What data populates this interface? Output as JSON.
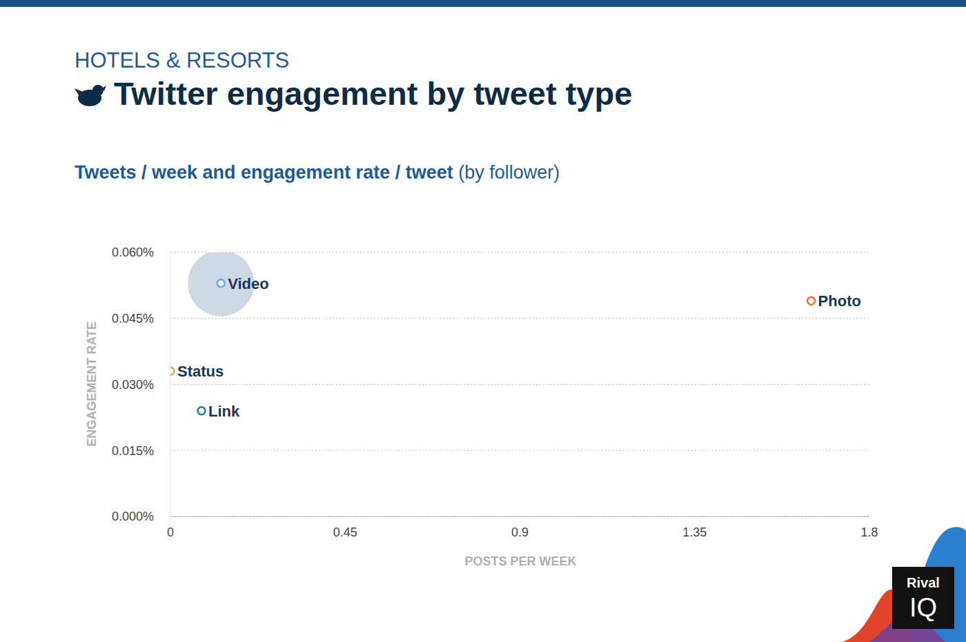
{
  "chart_data": {
    "type": "scatter",
    "supertitle": "HOTELS & RESORTS",
    "title": "Twitter engagement by tweet type",
    "subtitle": "Tweets / week and engagement rate / tweet",
    "subtitle_note": "(by follower)",
    "x_label": "POSTS PER WEEK",
    "y_label": "ENGAGEMENT RATE",
    "xlim": [
      0,
      1.8
    ],
    "xticks": [
      0,
      0.45,
      0.9,
      1.35,
      1.8
    ],
    "ylim": [
      0,
      0.06
    ],
    "yticks": [
      {
        "value": 0,
        "label": "0.000%"
      },
      {
        "value": 0.015,
        "label": "0.015%"
      },
      {
        "value": 0.03,
        "label": "0.030%"
      },
      {
        "value": 0.045,
        "label": "0.045%"
      },
      {
        "value": 0.06,
        "label": "0.060%"
      }
    ],
    "grid": true,
    "marker": "hollow circle",
    "series": [
      {
        "name": "Video",
        "color": "#5aa7f2",
        "x": [
          0.13
        ],
        "values": [
          0.053
        ]
      },
      {
        "name": "Photo",
        "color": "#f26b3a",
        "x": [
          1.65
        ],
        "values": [
          0.049
        ]
      },
      {
        "name": "Status",
        "color": "#e8a93a",
        "x": [
          0.0
        ],
        "values": [
          0.033
        ]
      },
      {
        "name": "Link",
        "color": "#1f7f8c",
        "x": [
          0.08
        ],
        "values": [
          0.024
        ]
      }
    ],
    "brand": {
      "line1": "Rival",
      "line2": "IQ"
    }
  }
}
